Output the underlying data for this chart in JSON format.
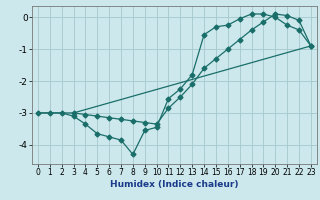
{
  "xlabel": "Humidex (Indice chaleur)",
  "bg_color": "#cce8ec",
  "grid_color": "#aaccd0",
  "line_color": "#1a6e6a",
  "xlim": [
    -0.5,
    23.5
  ],
  "ylim": [
    -4.6,
    0.35
  ],
  "xticks": [
    0,
    1,
    2,
    3,
    4,
    5,
    6,
    7,
    8,
    9,
    10,
    11,
    12,
    13,
    14,
    15,
    16,
    17,
    18,
    19,
    20,
    21,
    22,
    23
  ],
  "yticks": [
    0,
    -1,
    -2,
    -3,
    -4
  ],
  "line1_x": [
    0,
    1,
    2,
    3,
    4,
    5,
    6,
    7,
    8,
    9,
    10,
    11,
    12,
    13,
    14,
    15,
    16,
    17,
    18,
    19,
    20,
    21,
    22,
    23
  ],
  "line1_y": [
    -3.0,
    -3.0,
    -3.0,
    -3.1,
    -3.35,
    -3.65,
    -3.75,
    -3.85,
    -4.3,
    -3.55,
    -3.45,
    -2.55,
    -2.25,
    -1.8,
    -0.55,
    -0.3,
    -0.25,
    -0.05,
    0.1,
    0.1,
    0.0,
    -0.25,
    -0.4,
    -0.9
  ],
  "line2_x": [
    3,
    4,
    5,
    6,
    7,
    8,
    9,
    10,
    11,
    12,
    13,
    14,
    15,
    16,
    17,
    18,
    19,
    20,
    21,
    22,
    23
  ],
  "line2_y": [
    -3.0,
    -3.05,
    -3.1,
    -3.15,
    -3.2,
    -3.25,
    -3.3,
    -3.35,
    -2.85,
    -2.5,
    -2.1,
    -1.6,
    -1.3,
    -1.0,
    -0.7,
    -0.4,
    -0.15,
    0.1,
    0.05,
    -0.1,
    -0.9
  ],
  "line3_x": [
    0,
    3,
    23
  ],
  "line3_y": [
    -3.0,
    -3.0,
    -0.9
  ]
}
